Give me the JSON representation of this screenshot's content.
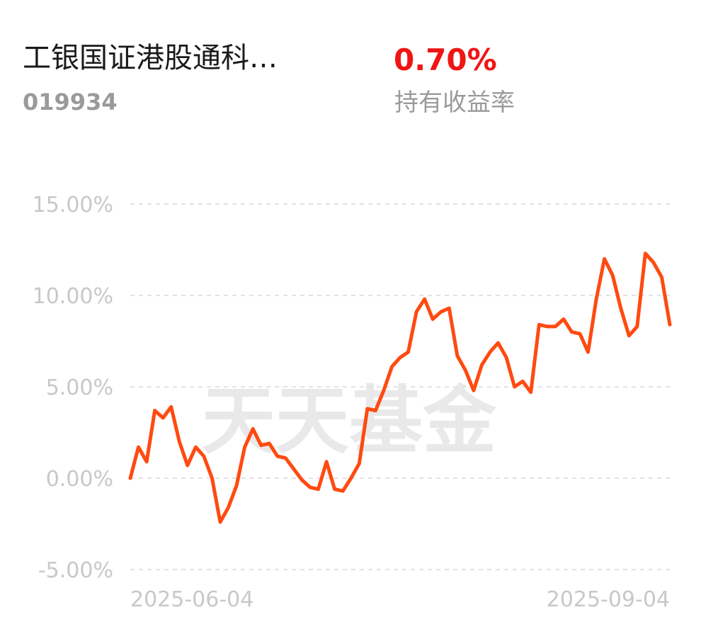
{
  "header": {
    "fund_name": "工银国证港股通科…",
    "fund_code": "019934",
    "return_value": "0.70%",
    "return_label": "持有收益率"
  },
  "watermark": "天天基金",
  "colors": {
    "line": "#ff4a10",
    "return_value": "#f01414",
    "grid": "#e2e2e2",
    "tick_text": "#c8c8c8"
  },
  "chart_data": {
    "type": "line",
    "title": "",
    "xlabel": "",
    "ylabel": "",
    "ylim": [
      -5,
      15
    ],
    "y_ticks": [
      15,
      10,
      5,
      0,
      -5
    ],
    "y_tick_labels": [
      "15.00%",
      "10.00%",
      "5.00%",
      "0.00%",
      "-5.00%"
    ],
    "x_tick_labels": [
      "2025-06-04",
      "2025-09-04"
    ],
    "grid": true,
    "grid_style": "dashed horizontal",
    "series": [
      {
        "values": [
          0.0,
          1.7,
          0.9,
          3.7,
          3.3,
          3.9,
          2.0,
          0.7,
          1.7,
          1.2,
          0.0,
          -2.4,
          -1.6,
          -0.4,
          1.7,
          2.7,
          1.8,
          1.9,
          1.2,
          1.1,
          0.5,
          -0.1,
          -0.5,
          -0.6,
          0.9,
          -0.6,
          -0.7,
          0.0,
          0.8,
          3.8,
          3.7,
          4.8,
          6.1,
          6.6,
          6.9,
          9.1,
          9.8,
          8.7,
          9.1,
          9.3,
          6.7,
          5.9,
          4.8,
          6.2,
          6.9,
          7.4,
          6.6,
          5.0,
          5.3,
          4.7,
          8.4,
          8.3,
          8.3,
          8.7,
          8.0,
          7.9,
          6.9,
          9.8,
          12.0,
          11.1,
          9.3,
          7.8,
          8.3,
          12.3,
          11.8,
          11.0,
          8.4
        ]
      }
    ]
  }
}
